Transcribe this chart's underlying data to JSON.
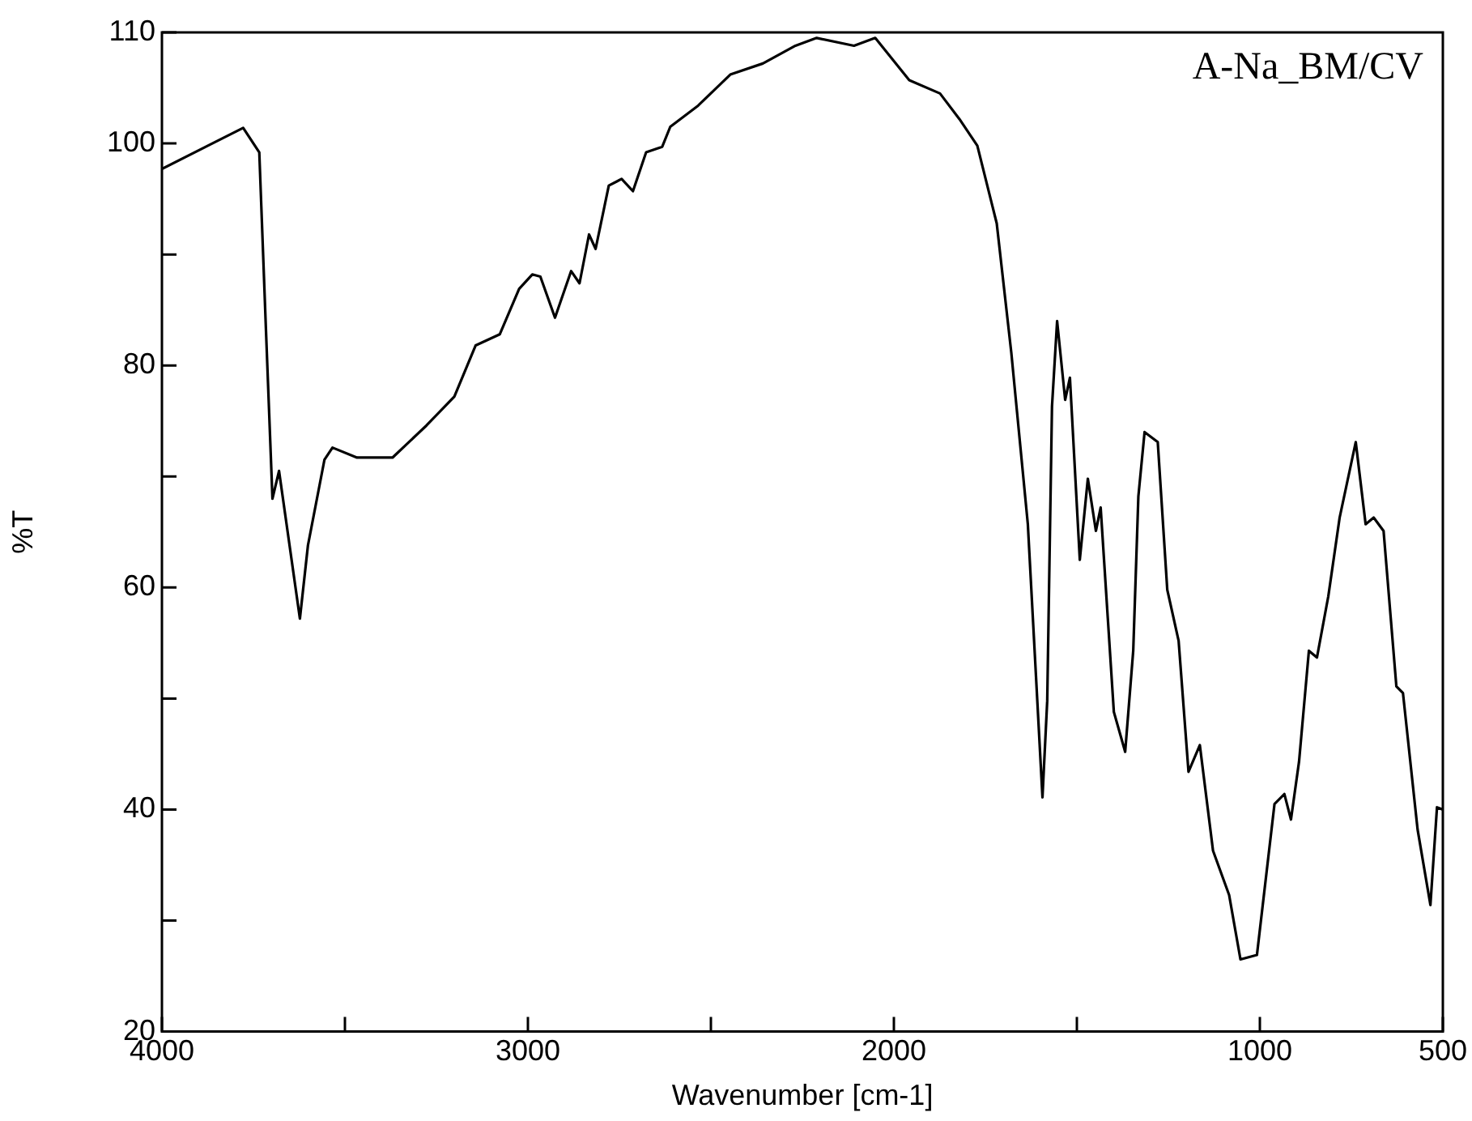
{
  "chart_data": {
    "type": "line",
    "xlabel": "Wavenumber [cm-1]",
    "ylabel": "%T",
    "annotations": [
      "A-Na_BM/CV"
    ],
    "x": [
      4000,
      3778,
      3734,
      3716,
      3698,
      3680,
      3623,
      3601,
      3556,
      3534,
      3467,
      3370,
      3277,
      3201,
      3143,
      3077,
      3024,
      2988,
      2966,
      2926,
      2882,
      2859,
      2833,
      2815,
      2779,
      2744,
      2713,
      2677,
      2633,
      2611,
      2535,
      2447,
      2358,
      2269,
      2211,
      2109,
      2051,
      1958,
      1874,
      1821,
      1772,
      1719,
      1679,
      1634,
      1594,
      1581,
      1568,
      1554,
      1532,
      1519,
      1492,
      1470,
      1448,
      1435,
      1399,
      1368,
      1346,
      1332,
      1315,
      1279,
      1253,
      1222,
      1195,
      1164,
      1128,
      1084,
      1053,
      1008,
      960,
      933,
      915,
      893,
      866,
      844,
      813,
      782,
      738,
      711,
      689,
      662,
      627,
      609,
      569,
      534,
      516,
      500
    ],
    "series": [
      {
        "color": "#000000",
        "values": [
          97.7,
          101.4,
          99.2,
          83.4,
          68,
          70.5,
          57.2,
          63.8,
          71.5,
          72.6,
          71.7,
          71.7,
          74.6,
          77.2,
          81.8,
          82.8,
          86.9,
          88.2,
          88,
          84.3,
          88.5,
          87.4,
          91.8,
          90.5,
          96.2,
          96.8,
          95.7,
          99.2,
          99.7,
          101.5,
          103.4,
          106.2,
          107.2,
          108.8,
          109.5,
          108.8,
          109.5,
          105.7,
          104.5,
          102.2,
          99.8,
          92.8,
          81.1,
          65.7,
          41.1,
          49.8,
          76.3,
          84,
          76.9,
          78.9,
          62.5,
          69.8,
          65.1,
          67.2,
          48.8,
          45.2,
          54.3,
          68.2,
          74,
          73.1,
          59.8,
          55.2,
          43.4,
          45.8,
          36.3,
          32.3,
          26.5,
          26.9,
          40.5,
          41.4,
          39.1,
          44.3,
          54.3,
          53.7,
          59.2,
          66.3,
          73.1,
          65.7,
          66.3,
          65.1,
          51.1,
          50.5,
          38.2,
          31.4,
          40.2,
          40
        ]
      }
    ],
    "xlim": [
      4000,
      500
    ],
    "xticks": [
      4000,
      {
        "value": 3500,
        "label": null
      },
      3000,
      {
        "value": 2500,
        "label": null
      },
      2000,
      {
        "value": 1500,
        "label": null
      },
      1000,
      500
    ],
    "ylim": [
      20,
      110
    ],
    "yticks": [
      20,
      {
        "value": 30,
        "label": null
      },
      40,
      {
        "value": 50,
        "label": null
      },
      60,
      {
        "value": 70,
        "label": null
      },
      80,
      {
        "value": 90,
        "label": null
      },
      100,
      110
    ],
    "grid": false,
    "legend": false,
    "marker": "none",
    "line_style": "solid"
  }
}
